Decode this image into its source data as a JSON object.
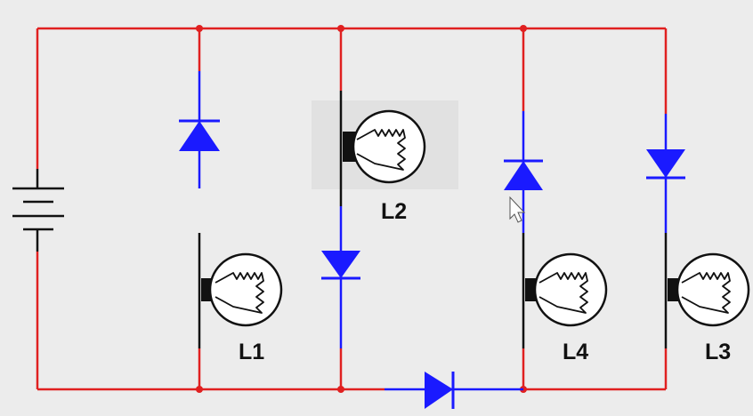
{
  "colors": {
    "wire_red": "#e02020",
    "wire_blue": "#1a1aff",
    "wire_black": "#111111",
    "background": "#ececec"
  },
  "lamps": {
    "l1": {
      "label": "L1",
      "icon": "lamp-icon"
    },
    "l2": {
      "label": "L2",
      "icon": "lamp-icon"
    },
    "l3": {
      "label": "L3",
      "icon": "lamp-icon"
    },
    "l4": {
      "label": "L4",
      "icon": "lamp-icon"
    }
  },
  "components": {
    "battery": "battery-icon",
    "diode": "diode-icon",
    "cursor": "mouse-pointer-icon"
  }
}
